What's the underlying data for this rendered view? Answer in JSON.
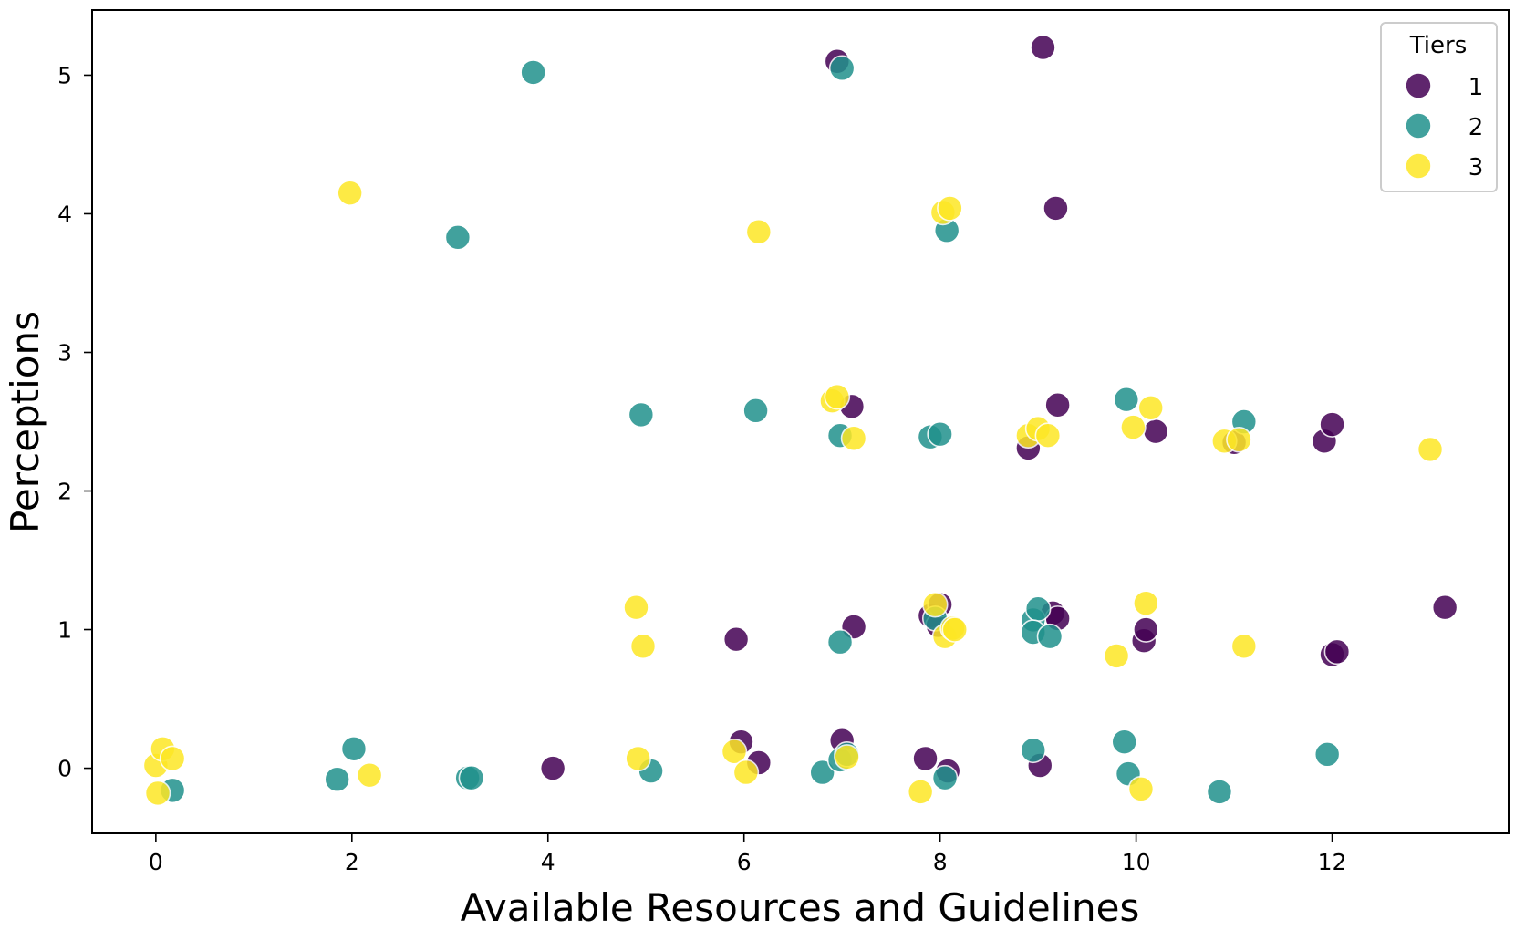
{
  "chart_data": {
    "type": "scatter",
    "xlabel": "Available Resources and Guidelines",
    "ylabel": "Perceptions",
    "xlim": [
      -0.65,
      13.8
    ],
    "ylim": [
      -0.47,
      5.47
    ],
    "xticks": [
      0,
      2,
      4,
      6,
      8,
      10,
      12
    ],
    "yticks": [
      0,
      1,
      2,
      3,
      4,
      5
    ],
    "grid": false,
    "legend": {
      "title": "Tiers",
      "placement": "top-right"
    },
    "series": [
      {
        "name": "1",
        "color": "#440154",
        "points": [
          [
            6.95,
            5.1
          ],
          [
            9.05,
            5.2
          ],
          [
            9.18,
            4.04
          ],
          [
            7.1,
            2.61
          ],
          [
            9.2,
            2.62
          ],
          [
            8.9,
            2.31
          ],
          [
            10.2,
            2.43
          ],
          [
            11.0,
            2.35
          ],
          [
            11.92,
            2.36
          ],
          [
            12.0,
            2.48
          ],
          [
            5.92,
            0.93
          ],
          [
            7.12,
            1.02
          ],
          [
            7.9,
            1.1
          ],
          [
            7.98,
            1.03
          ],
          [
            8.0,
            1.18
          ],
          [
            9.15,
            1.12
          ],
          [
            9.2,
            1.08
          ],
          [
            10.08,
            0.92
          ],
          [
            10.1,
            1.0
          ],
          [
            12.0,
            0.82
          ],
          [
            12.05,
            0.84
          ],
          [
            13.15,
            1.16
          ],
          [
            4.05,
            0.0
          ],
          [
            5.97,
            0.19
          ],
          [
            6.15,
            0.04
          ],
          [
            7.0,
            0.2
          ],
          [
            7.85,
            0.07
          ],
          [
            8.08,
            -0.02
          ],
          [
            9.02,
            0.02
          ]
        ]
      },
      {
        "name": "2",
        "color": "#21918c",
        "points": [
          [
            3.85,
            5.02
          ],
          [
            7.0,
            5.05
          ],
          [
            3.08,
            3.83
          ],
          [
            8.07,
            3.88
          ],
          [
            4.95,
            2.55
          ],
          [
            6.12,
            2.58
          ],
          [
            6.98,
            2.4
          ],
          [
            7.9,
            2.39
          ],
          [
            8.0,
            2.41
          ],
          [
            9.9,
            2.66
          ],
          [
            11.1,
            2.5
          ],
          [
            6.98,
            0.91
          ],
          [
            7.95,
            1.08
          ],
          [
            8.95,
            1.07
          ],
          [
            9.0,
            1.15
          ],
          [
            8.95,
            0.98
          ],
          [
            9.12,
            0.95
          ],
          [
            0.17,
            -0.16
          ],
          [
            1.85,
            -0.08
          ],
          [
            2.02,
            0.14
          ],
          [
            3.18,
            -0.07
          ],
          [
            3.22,
            -0.07
          ],
          [
            5.05,
            -0.02
          ],
          [
            6.8,
            -0.03
          ],
          [
            6.98,
            0.06
          ],
          [
            7.05,
            0.1
          ],
          [
            8.05,
            -0.07
          ],
          [
            8.95,
            0.13
          ],
          [
            9.88,
            0.19
          ],
          [
            9.92,
            -0.04
          ],
          [
            10.85,
            -0.17
          ],
          [
            11.95,
            0.1
          ]
        ]
      },
      {
        "name": "3",
        "color": "#fde725",
        "points": [
          [
            1.98,
            4.15
          ],
          [
            6.15,
            3.87
          ],
          [
            8.03,
            4.01
          ],
          [
            8.1,
            4.04
          ],
          [
            6.9,
            2.65
          ],
          [
            6.95,
            2.68
          ],
          [
            7.12,
            2.38
          ],
          [
            8.9,
            2.4
          ],
          [
            9.0,
            2.45
          ],
          [
            9.1,
            2.4
          ],
          [
            9.97,
            2.46
          ],
          [
            10.15,
            2.6
          ],
          [
            10.9,
            2.36
          ],
          [
            11.05,
            2.37
          ],
          [
            13.0,
            2.3
          ],
          [
            4.9,
            1.16
          ],
          [
            4.97,
            0.88
          ],
          [
            7.95,
            1.18
          ],
          [
            8.05,
            0.95
          ],
          [
            8.13,
            1.01
          ],
          [
            8.15,
            1.0
          ],
          [
            9.8,
            0.81
          ],
          [
            10.1,
            1.19
          ],
          [
            11.1,
            0.88
          ],
          [
            0.0,
            0.02
          ],
          [
            0.02,
            -0.18
          ],
          [
            0.07,
            0.14
          ],
          [
            0.17,
            0.07
          ],
          [
            2.18,
            -0.05
          ],
          [
            4.92,
            0.07
          ],
          [
            5.9,
            0.12
          ],
          [
            6.02,
            -0.03
          ],
          [
            7.05,
            0.08
          ],
          [
            7.8,
            -0.17
          ],
          [
            10.05,
            -0.15
          ]
        ]
      }
    ]
  }
}
